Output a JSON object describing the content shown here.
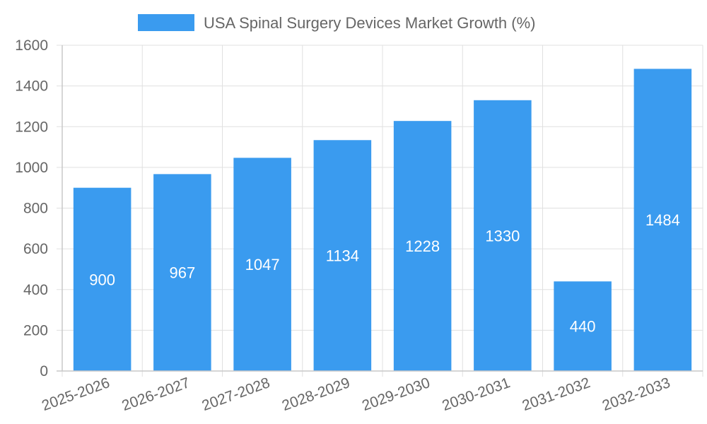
{
  "chart_data": {
    "type": "bar",
    "title": "",
    "legend": {
      "label": "USA Spinal Surgery Devices Market Growth (%)",
      "position": "top"
    },
    "categories": [
      "2025-2026",
      "2026-2027",
      "2027-2028",
      "2028-2029",
      "2029-2030",
      "2030-2031",
      "2031-2032",
      "2032-2033"
    ],
    "series": [
      {
        "name": "USA Spinal Surgery Devices Market Growth (%)",
        "values": [
          900,
          967,
          1047,
          1134,
          1228,
          1330,
          440,
          1484
        ]
      }
    ],
    "data_labels": [
      "900",
      "967",
      "1047",
      "1134",
      "1228",
      "1330",
      "440",
      "1484"
    ],
    "y_ticks": [
      "0",
      "200",
      "400",
      "600",
      "800",
      "1000",
      "1200",
      "1400",
      "1600"
    ],
    "ylim": [
      0,
      1600
    ],
    "xlabel": "",
    "ylabel": "",
    "grid": true,
    "colors": {
      "bar": "#3a9bef",
      "grid": "#e0e0e0",
      "axis": "#c8c8c8",
      "text": "#666666"
    }
  }
}
